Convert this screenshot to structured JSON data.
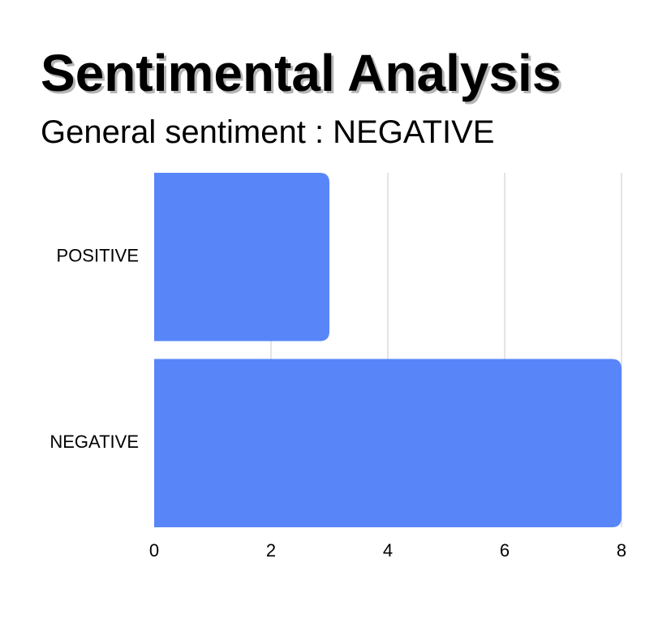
{
  "header": {
    "title": "Sentimental Analysis",
    "subtitle": "General sentiment : NEGATIVE"
  },
  "chart_data": {
    "type": "bar",
    "orientation": "horizontal",
    "categories": [
      "POSITIVE",
      "NEGATIVE"
    ],
    "values": [
      3,
      8
    ],
    "xlim": [
      0,
      8
    ],
    "xticks": [
      0,
      2,
      4,
      6,
      8
    ],
    "xlabel": "",
    "ylabel": "",
    "grid": true,
    "bar_color": "#5886f9",
    "grid_color": "#dcdcdc"
  }
}
